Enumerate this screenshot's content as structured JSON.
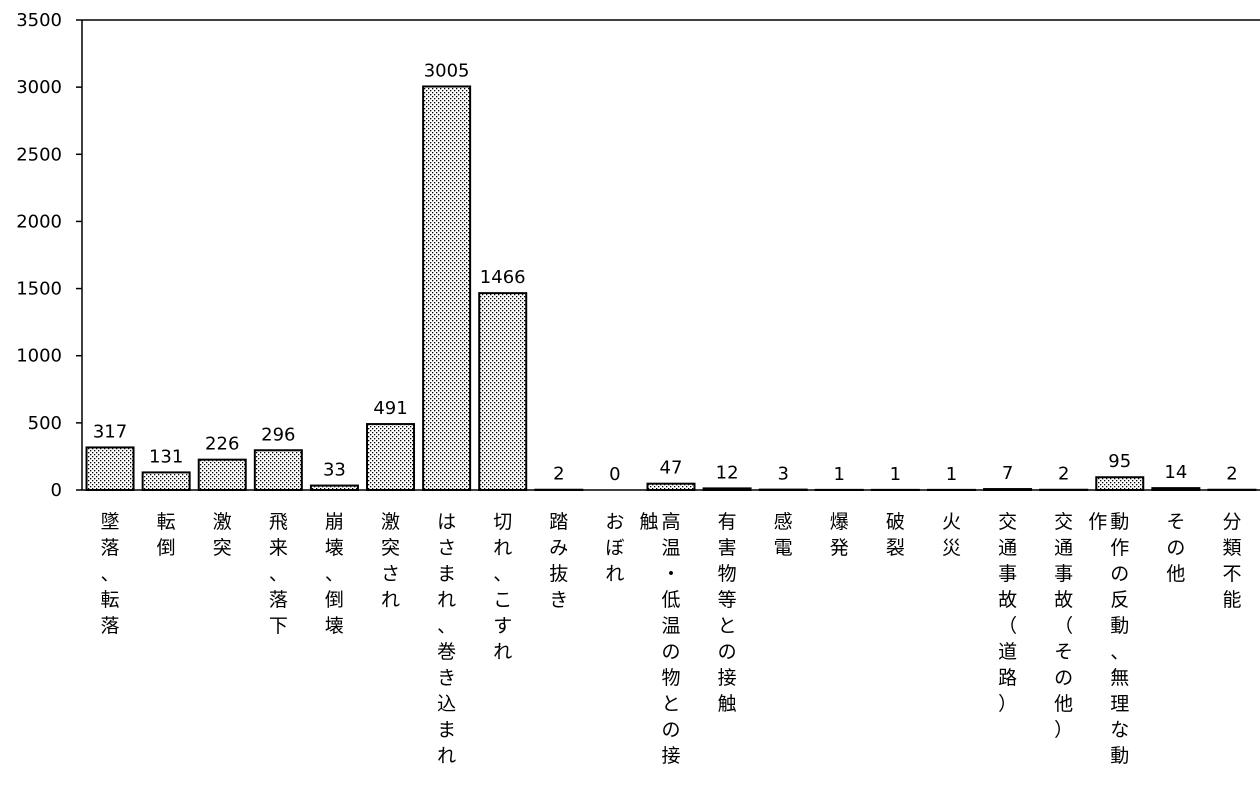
{
  "chart_data": {
    "type": "bar",
    "categories": [
      "墜落、転落",
      "転倒",
      "激突",
      "飛来、落下",
      "崩壊、倒壊",
      "激突され",
      "はさまれ、巻き込まれ",
      "切れ、こすれ",
      "踏み抜き",
      "おぼれ",
      "高温・低温の物との接触",
      "有害物等との接触",
      "感電",
      "爆発",
      "破裂",
      "火災",
      "交通事故（道路）",
      "交通事故（その他）",
      "動作の反動、無理な動作",
      "その他",
      "分類不能"
    ],
    "values": [
      317,
      131,
      226,
      296,
      33,
      491,
      3005,
      1466,
      2,
      0,
      47,
      12,
      3,
      1,
      1,
      1,
      7,
      2,
      95,
      14,
      2
    ],
    "ylim": [
      0,
      3500
    ],
    "yticks": [
      0,
      500,
      1000,
      1500,
      2000,
      2500,
      3000,
      3500
    ],
    "title": "",
    "xlabel": "",
    "ylabel": "",
    "bar_fill": "dotted",
    "bar_color": "#000000",
    "background": "#ffffff",
    "grid": false,
    "legend": "none"
  }
}
